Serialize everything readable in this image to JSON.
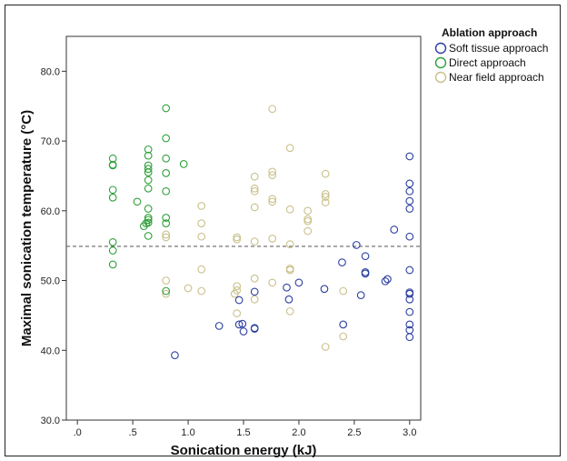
{
  "chart_data": {
    "type": "scatter",
    "xlabel": "Sonication energy (kJ)",
    "ylabel": "Maximal sonication temperature (°C)",
    "xlim": [
      -0.1,
      3.1
    ],
    "ylim": [
      30,
      85
    ],
    "x_ticks": [
      {
        "value": 0,
        "label": ".0"
      },
      {
        "value": 0.5,
        "label": ".5"
      },
      {
        "value": 1.0,
        "label": "1.0"
      },
      {
        "value": 1.5,
        "label": "1.5"
      },
      {
        "value": 2.0,
        "label": "2.0"
      },
      {
        "value": 2.5,
        "label": "2.5"
      },
      {
        "value": 3.0,
        "label": "3.0"
      }
    ],
    "y_ticks": [
      {
        "value": 30,
        "label": "30.0"
      },
      {
        "value": 40,
        "label": "40.0"
      },
      {
        "value": 50,
        "label": "50.0"
      },
      {
        "value": 60,
        "label": "60.0"
      },
      {
        "value": 70,
        "label": "70.0"
      },
      {
        "value": 80,
        "label": "80.0"
      }
    ],
    "reference_line_y": 54.9,
    "legend": {
      "title": "Ablation approach",
      "placement": "top-right"
    },
    "series": [
      {
        "name": "Soft tissue approach",
        "color": "#2b3f9e",
        "points": [
          [
            0.88,
            39.3
          ],
          [
            1.28,
            43.5
          ],
          [
            1.46,
            47.2
          ],
          [
            1.46,
            43.7
          ],
          [
            1.49,
            43.8
          ],
          [
            1.5,
            42.7
          ],
          [
            1.6,
            48.4
          ],
          [
            1.6,
            43.1
          ],
          [
            1.6,
            43.2
          ],
          [
            1.89,
            49.0
          ],
          [
            1.91,
            47.3
          ],
          [
            2.0,
            49.7
          ],
          [
            2.23,
            48.8
          ],
          [
            2.39,
            52.6
          ],
          [
            2.4,
            43.7
          ],
          [
            2.52,
            55.1
          ],
          [
            2.56,
            47.9
          ],
          [
            2.6,
            53.5
          ],
          [
            2.6,
            51.0
          ],
          [
            2.6,
            51.2
          ],
          [
            2.78,
            49.9
          ],
          [
            2.8,
            50.2
          ],
          [
            2.86,
            57.3
          ],
          [
            3.0,
            67.8
          ],
          [
            3.0,
            63.9
          ],
          [
            3.0,
            62.8
          ],
          [
            3.0,
            61.4
          ],
          [
            3.0,
            60.3
          ],
          [
            3.0,
            56.3
          ],
          [
            3.0,
            51.5
          ],
          [
            3.0,
            48.3
          ],
          [
            3.0,
            48.1
          ],
          [
            3.0,
            47.3
          ],
          [
            3.0,
            45.5
          ],
          [
            3.0,
            43.7
          ],
          [
            3.0,
            42.9
          ],
          [
            3.0,
            41.9
          ]
        ]
      },
      {
        "name": "Direct approach",
        "color": "#2ea03a",
        "points": [
          [
            0.32,
            67.5
          ],
          [
            0.32,
            66.6
          ],
          [
            0.32,
            66.5
          ],
          [
            0.32,
            63.0
          ],
          [
            0.32,
            61.9
          ],
          [
            0.32,
            55.5
          ],
          [
            0.32,
            54.3
          ],
          [
            0.32,
            52.3
          ],
          [
            0.54,
            61.3
          ],
          [
            0.6,
            57.8
          ],
          [
            0.62,
            58.2
          ],
          [
            0.64,
            68.8
          ],
          [
            0.64,
            67.9
          ],
          [
            0.64,
            66.5
          ],
          [
            0.64,
            66.0
          ],
          [
            0.64,
            65.5
          ],
          [
            0.64,
            64.4
          ],
          [
            0.64,
            63.2
          ],
          [
            0.64,
            60.3
          ],
          [
            0.64,
            59.0
          ],
          [
            0.64,
            58.7
          ],
          [
            0.64,
            58.3
          ],
          [
            0.64,
            56.4
          ],
          [
            0.8,
            74.7
          ],
          [
            0.8,
            70.4
          ],
          [
            0.8,
            67.5
          ],
          [
            0.8,
            65.4
          ],
          [
            0.8,
            62.8
          ],
          [
            0.8,
            59.0
          ],
          [
            0.8,
            58.2
          ],
          [
            0.8,
            48.5
          ],
          [
            0.96,
            66.7
          ]
        ]
      },
      {
        "name": "Near field approach",
        "color": "#c9c08a",
        "points": [
          [
            0.8,
            56.6
          ],
          [
            0.8,
            56.2
          ],
          [
            0.8,
            50.0
          ],
          [
            0.8,
            48.1
          ],
          [
            1.0,
            48.9
          ],
          [
            1.12,
            60.7
          ],
          [
            1.12,
            58.2
          ],
          [
            1.12,
            56.3
          ],
          [
            1.12,
            51.6
          ],
          [
            1.12,
            48.5
          ],
          [
            1.42,
            48.1
          ],
          [
            1.44,
            56.2
          ],
          [
            1.44,
            55.9
          ],
          [
            1.44,
            49.2
          ],
          [
            1.44,
            48.6
          ],
          [
            1.44,
            45.3
          ],
          [
            1.6,
            64.9
          ],
          [
            1.6,
            63.2
          ],
          [
            1.6,
            62.8
          ],
          [
            1.6,
            60.5
          ],
          [
            1.6,
            55.6
          ],
          [
            1.6,
            50.3
          ],
          [
            1.6,
            47.3
          ],
          [
            1.76,
            74.6
          ],
          [
            1.76,
            65.6
          ],
          [
            1.76,
            65.1
          ],
          [
            1.76,
            61.7
          ],
          [
            1.76,
            61.3
          ],
          [
            1.76,
            56.0
          ],
          [
            1.76,
            49.7
          ],
          [
            1.92,
            69.0
          ],
          [
            1.92,
            60.2
          ],
          [
            1.92,
            55.2
          ],
          [
            1.92,
            51.7
          ],
          [
            1.92,
            51.5
          ],
          [
            1.92,
            45.6
          ],
          [
            2.08,
            60.0
          ],
          [
            2.08,
            58.8
          ],
          [
            2.08,
            58.5
          ],
          [
            2.08,
            57.1
          ],
          [
            2.24,
            65.3
          ],
          [
            2.24,
            62.4
          ],
          [
            2.24,
            62.0
          ],
          [
            2.24,
            61.2
          ],
          [
            2.24,
            40.5
          ],
          [
            2.4,
            48.5
          ],
          [
            2.4,
            42.0
          ]
        ]
      }
    ]
  }
}
